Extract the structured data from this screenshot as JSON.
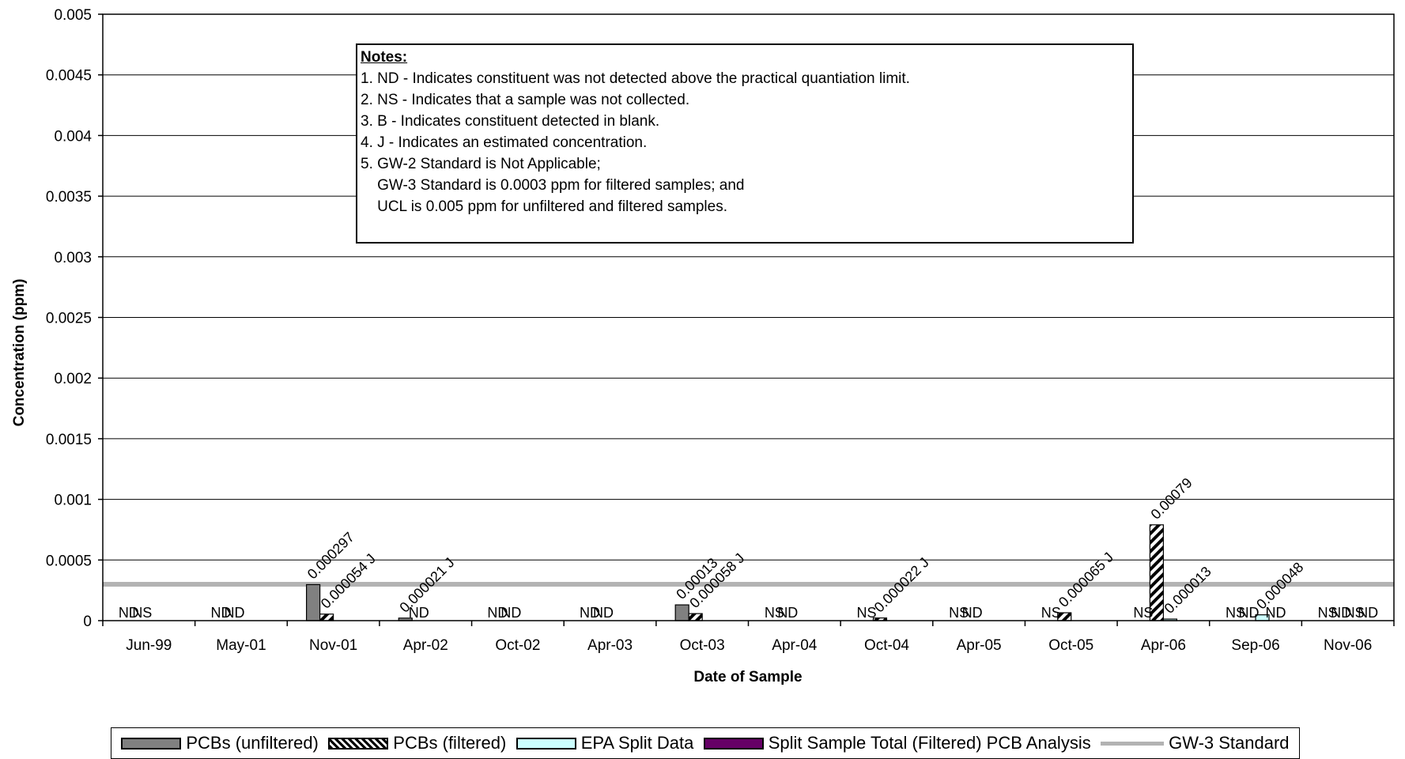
{
  "chart_data": {
    "type": "bar",
    "title": "",
    "xlabel": "Date of Sample",
    "ylabel": "Concentration (ppm)",
    "ylim": [
      0,
      0.005
    ],
    "yticks": [
      "0",
      "0.0005",
      "0.001",
      "0.0015",
      "0.002",
      "0.0025",
      "0.003",
      "0.0035",
      "0.004",
      "0.0045",
      "0.005"
    ],
    "grid": true,
    "legend_position": "bottom",
    "categories": [
      "Jun-99",
      "May-01",
      "Nov-01",
      "Apr-02",
      "Oct-02",
      "Apr-03",
      "Oct-03",
      "Apr-04",
      "Oct-04",
      "Apr-05",
      "Oct-05",
      "Apr-06",
      "Sep-06",
      "Nov-06"
    ],
    "series": [
      {
        "name": "PCBs (unfiltered)",
        "color": "#808080",
        "pattern": "solid",
        "values": [
          0,
          0,
          0.000297,
          2.1e-05,
          0,
          0,
          0.00013,
          0,
          0,
          0,
          0,
          0,
          0,
          0
        ],
        "labels": [
          "ND",
          "ND",
          "0.000297",
          "0.000021 J",
          "ND",
          "ND",
          "0.00013",
          "NS",
          "NS",
          "NS",
          "NS",
          "NS",
          "NS",
          "NS"
        ]
      },
      {
        "name": "PCBs (filtered)",
        "color": "#000000",
        "pattern": "diagonal-hatch",
        "values": [
          0,
          0,
          5.4e-05,
          0,
          0,
          0,
          5.8e-05,
          0,
          2.2e-05,
          0,
          6.5e-05,
          0.00079,
          0,
          0
        ],
        "labels": [
          "NS",
          "ND",
          "0.000054 J",
          "ND",
          "ND",
          "ND",
          "0.000058 J",
          "ND",
          "0.000022 J",
          "ND",
          "0.000065 J",
          "0.00079",
          "ND",
          "ND"
        ]
      },
      {
        "name": "EPA Split Data",
        "color": "#ccffff",
        "pattern": "solid",
        "values": [
          0,
          0,
          0,
          0,
          0,
          0,
          0,
          0,
          0,
          0,
          0,
          1.3e-05,
          4.8e-05,
          0
        ],
        "labels": [
          "",
          "",
          "",
          "",
          "",
          "",
          "",
          "",
          "",
          "",
          "",
          "0.000013",
          "0.000048",
          "NS"
        ]
      },
      {
        "name": "Split Sample Total (Filtered) PCB Analysis",
        "color": "#660066",
        "pattern": "solid",
        "values": [
          0,
          0,
          0,
          0,
          0,
          0,
          0,
          0,
          0,
          0,
          0,
          0,
          0,
          0
        ],
        "labels": [
          "",
          "",
          "",
          "",
          "",
          "",
          "",
          "",
          "",
          "",
          "",
          "",
          "ND",
          "ND"
        ]
      }
    ],
    "reference_line": {
      "name": "GW-3 Standard",
      "value": 0.0003,
      "color": "#b3b3b3"
    },
    "notes": {
      "title": "Notes:",
      "lines": [
        "1. ND - Indicates constituent was not detected above the practical quantiation limit.",
        "2. NS - Indicates that a sample was not collected.",
        "3. B - Indicates constituent detected in blank.",
        "4. J - Indicates an estimated concentration.",
        "5. GW-2 Standard is Not Applicable;",
        "    GW-3 Standard is 0.0003 ppm for filtered samples; and",
        "    UCL is 0.005 ppm for unfiltered and filtered samples."
      ]
    }
  }
}
